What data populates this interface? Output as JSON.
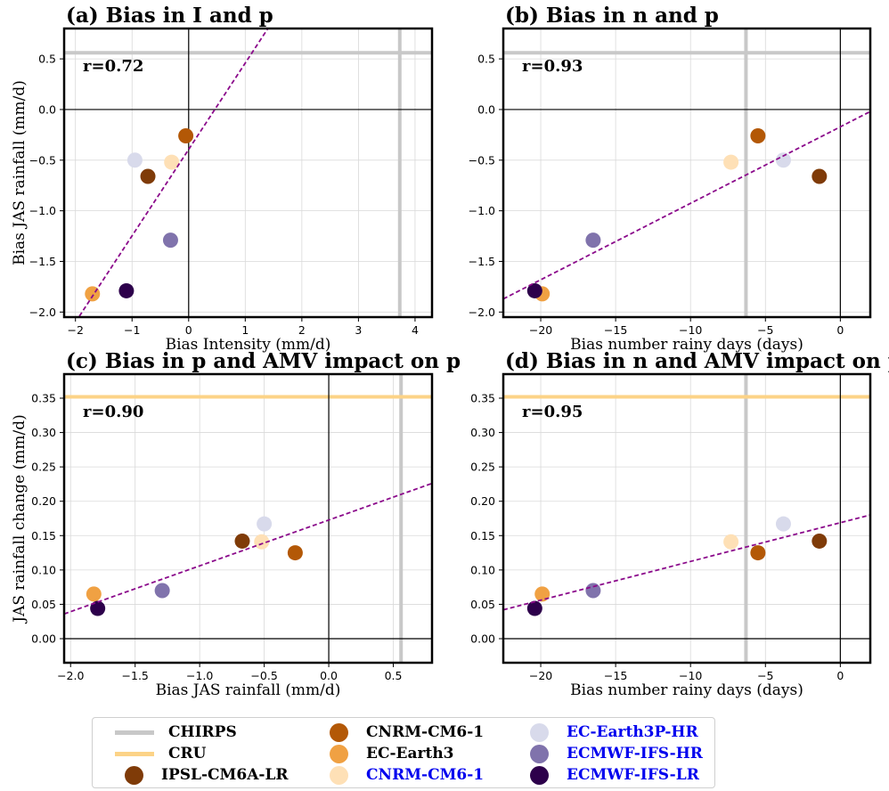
{
  "models": [
    {
      "name": "CHIRPS",
      "kind": "line",
      "color": "#c8c8c8",
      "text_color": "#000000"
    },
    {
      "name": "CRU",
      "kind": "line",
      "color": "#fcd387",
      "text_color": "#000000"
    },
    {
      "name": "IPSL-CM6A-LR",
      "kind": "dot",
      "color": "#7f3b08",
      "text_color": "#000000"
    },
    {
      "name": "CNRM-CM6-1",
      "kind": "dot",
      "color": "#b35806",
      "text_color": "#000000"
    },
    {
      "name": "EC-Earth3",
      "kind": "dot",
      "color": "#f0a143",
      "text_color": "#000000"
    },
    {
      "name": "CNRM-CM6-1",
      "kind": "dot",
      "color": "#fee0b6",
      "text_color": "#0000ee"
    },
    {
      "name": "EC-Earth3P-HR",
      "kind": "dot",
      "color": "#d8daeb",
      "text_color": "#0000ee"
    },
    {
      "name": "ECMWF-IFS-HR",
      "kind": "dot",
      "color": "#8073ac",
      "text_color": "#0000ee"
    },
    {
      "name": "ECMWF-IFS-LR",
      "kind": "dot",
      "color": "#2d004b",
      "text_color": "#0000ee"
    }
  ],
  "chart_data": [
    {
      "type": "scatter",
      "title": "(a) Bias in I and p",
      "xlabel": "Bias Intensity (mm/d)",
      "ylabel": "Bias JAS rainfall (mm/d)",
      "annotation": "r=0.72",
      "xlim": [
        -2.2,
        4.3
      ],
      "ylim": [
        -2.05,
        0.8
      ],
      "xticks": [
        -2,
        -1,
        0,
        1,
        2,
        3,
        4
      ],
      "xtick_labels": [
        "−2",
        "−1",
        "0",
        "1",
        "2",
        "3",
        "4"
      ],
      "yticks": [
        -2.0,
        -1.5,
        -1.0,
        -0.5,
        0.0,
        0.5
      ],
      "ytick_labels": [
        "−2.0",
        "−1.5",
        "−1.0",
        "−0.5",
        "0.0",
        "0.5"
      ],
      "ref_vertical": {
        "value": 3.73,
        "source": "CHIRPS"
      },
      "ref_horizontal": {
        "value": 0.56,
        "source": "CHIRPS"
      },
      "fit_line": [
        [
          -2.0,
          -2.1
        ],
        [
          1.4,
          0.8
        ]
      ],
      "points": [
        {
          "model": 2,
          "x": -0.72,
          "y": -0.66
        },
        {
          "model": 3,
          "x": -0.05,
          "y": -0.26
        },
        {
          "model": 4,
          "x": -1.7,
          "y": -1.82
        },
        {
          "model": 5,
          "x": -0.3,
          "y": -0.52
        },
        {
          "model": 6,
          "x": -0.95,
          "y": -0.5
        },
        {
          "model": 7,
          "x": -0.32,
          "y": -1.29
        },
        {
          "model": 8,
          "x": -1.1,
          "y": -1.79
        }
      ]
    },
    {
      "type": "scatter",
      "title": "(b) Bias in n and p",
      "xlabel": "Bias number rainy days (days)",
      "ylabel": "",
      "annotation": "r=0.93",
      "xlim": [
        -22.5,
        2.0
      ],
      "ylim": [
        -2.05,
        0.8
      ],
      "xticks": [
        -20,
        -15,
        -10,
        -5,
        0
      ],
      "xtick_labels": [
        "−20",
        "−15",
        "−10",
        "−5",
        "0"
      ],
      "yticks": [
        -2.0,
        -1.5,
        -1.0,
        -0.5,
        0.0,
        0.5
      ],
      "ytick_labels": [
        "−2.0",
        "−1.5",
        "−1.0",
        "−0.5",
        "0.0",
        "0.5"
      ],
      "ref_vertical": {
        "value": -6.3,
        "source": "CHIRPS"
      },
      "ref_horizontal": {
        "value": 0.56,
        "source": "CHIRPS"
      },
      "fit_line": [
        [
          -22.5,
          -1.87
        ],
        [
          2.0,
          -0.02
        ]
      ],
      "points": [
        {
          "model": 2,
          "x": -1.4,
          "y": -0.66
        },
        {
          "model": 3,
          "x": -5.5,
          "y": -0.26
        },
        {
          "model": 4,
          "x": -19.9,
          "y": -1.82
        },
        {
          "model": 5,
          "x": -7.3,
          "y": -0.52
        },
        {
          "model": 6,
          "x": -3.8,
          "y": -0.5
        },
        {
          "model": 7,
          "x": -16.5,
          "y": -1.29
        },
        {
          "model": 8,
          "x": -20.4,
          "y": -1.79
        }
      ]
    },
    {
      "type": "scatter",
      "title": "(c) Bias in p and AMV impact on p",
      "xlabel": "Bias JAS rainfall (mm/d)",
      "ylabel": "JAS rainfall change (mm/d)",
      "annotation": "r=0.90",
      "xlim": [
        -2.05,
        0.8
      ],
      "ylim": [
        -0.035,
        0.385
      ],
      "xticks": [
        -2.0,
        -1.5,
        -1.0,
        -0.5,
        0.0,
        0.5
      ],
      "xtick_labels": [
        "−2.0",
        "−1.5",
        "−1.0",
        "−0.5",
        "0.0",
        "0.5"
      ],
      "yticks": [
        0.0,
        0.05,
        0.1,
        0.15,
        0.2,
        0.25,
        0.3,
        0.35
      ],
      "ytick_labels": [
        "0.00",
        "0.05",
        "0.10",
        "0.15",
        "0.20",
        "0.25",
        "0.30",
        "0.35"
      ],
      "ref_vertical": {
        "value": 0.56,
        "source": "CHIRPS"
      },
      "ref_horizontal": {
        "value": 0.352,
        "source": "CRU"
      },
      "fit_line": [
        [
          -2.05,
          0.036
        ],
        [
          0.8,
          0.226
        ]
      ],
      "points": [
        {
          "model": 2,
          "x": -0.67,
          "y": 0.142
        },
        {
          "model": 3,
          "x": -0.26,
          "y": 0.125
        },
        {
          "model": 4,
          "x": -1.82,
          "y": 0.065
        },
        {
          "model": 5,
          "x": -0.52,
          "y": 0.141
        },
        {
          "model": 6,
          "x": -0.5,
          "y": 0.167
        },
        {
          "model": 7,
          "x": -1.29,
          "y": 0.07
        },
        {
          "model": 8,
          "x": -1.79,
          "y": 0.044
        }
      ]
    },
    {
      "type": "scatter",
      "title": "(d) Bias in n and AMV impact on p",
      "xlabel": "Bias number rainy days (days)",
      "ylabel": "",
      "annotation": "r=0.95",
      "xlim": [
        -22.5,
        2.0
      ],
      "ylim": [
        -0.035,
        0.385
      ],
      "xticks": [
        -20,
        -15,
        -10,
        -5,
        0
      ],
      "xtick_labels": [
        "−20",
        "−15",
        "−10",
        "−5",
        "0"
      ],
      "yticks": [
        0.0,
        0.05,
        0.1,
        0.15,
        0.2,
        0.25,
        0.3,
        0.35
      ],
      "ytick_labels": [
        "0.00",
        "0.05",
        "0.10",
        "0.15",
        "0.20",
        "0.25",
        "0.30",
        "0.35"
      ],
      "ref_vertical": {
        "value": -6.3,
        "source": "CHIRPS"
      },
      "ref_horizontal": {
        "value": 0.352,
        "source": "CRU"
      },
      "fit_line": [
        [
          -22.5,
          0.042
        ],
        [
          2.0,
          0.18
        ]
      ],
      "points": [
        {
          "model": 2,
          "x": -1.4,
          "y": 0.142
        },
        {
          "model": 3,
          "x": -5.5,
          "y": 0.125
        },
        {
          "model": 4,
          "x": -19.9,
          "y": 0.065
        },
        {
          "model": 5,
          "x": -7.3,
          "y": 0.141
        },
        {
          "model": 6,
          "x": -3.8,
          "y": 0.167
        },
        {
          "model": 7,
          "x": -16.5,
          "y": 0.07
        },
        {
          "model": 8,
          "x": -20.4,
          "y": 0.044
        }
      ]
    }
  ]
}
